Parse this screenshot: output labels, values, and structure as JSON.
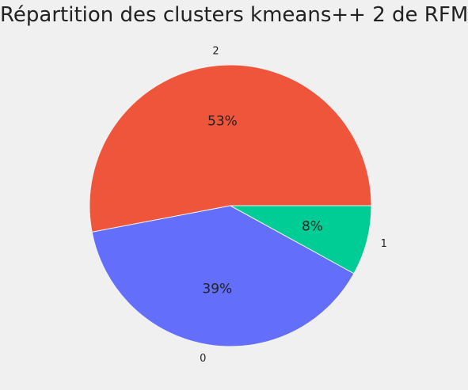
{
  "chart_data": {
    "type": "pie",
    "title": "Répartition des clusters kmeans++ 2 de RFM",
    "categories": [
      "2",
      "0",
      "1"
    ],
    "values": [
      53,
      39,
      8
    ],
    "percent_labels": [
      "53%",
      "39%",
      "8%"
    ],
    "colors": [
      "#ef553b",
      "#636efa",
      "#00cc96"
    ],
    "start_angle_deg": 0,
    "direction": "counterclockwise",
    "background": "#f0f0f0",
    "legend": "none"
  }
}
